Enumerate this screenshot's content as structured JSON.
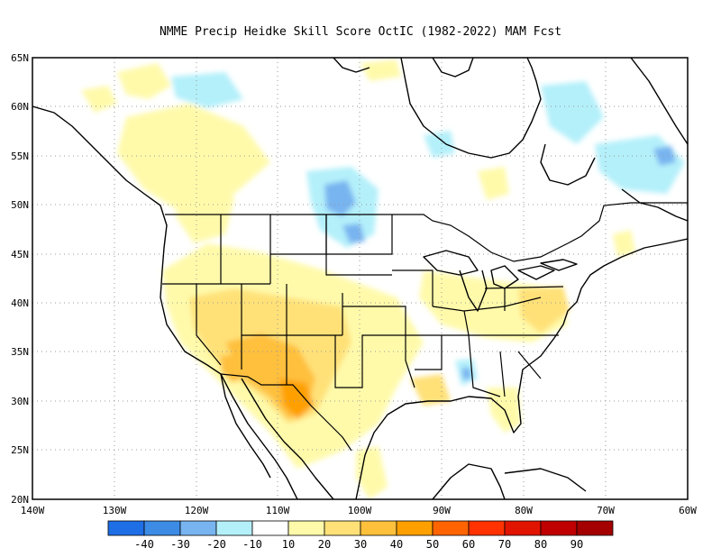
{
  "title": "NMME Precip Heidke Skill Score OctIC (1982-2022) MAM Fcst",
  "lat_labels": [
    "65N",
    "60N",
    "55N",
    "50N",
    "45N",
    "40N",
    "35N",
    "30N",
    "25N",
    "20N"
  ],
  "lon_labels": [
    "140W",
    "130W",
    "120W",
    "110W",
    "100W",
    "90W",
    "80W",
    "70W",
    "60W"
  ],
  "colorbar": {
    "colors": [
      "#1e6ee6",
      "#3c8ce6",
      "#78b4f0",
      "#b4f0fa",
      "#ffffff",
      "#fffaaa",
      "#ffe178",
      "#ffc03c",
      "#ffa000",
      "#ff6400",
      "#ff3200",
      "#e11400",
      "#c00000",
      "#a50000"
    ],
    "labels": [
      "-40",
      "-30",
      "-20",
      "-10",
      "10",
      "20",
      "30",
      "40",
      "50",
      "60",
      "70",
      "80",
      "90"
    ]
  }
}
